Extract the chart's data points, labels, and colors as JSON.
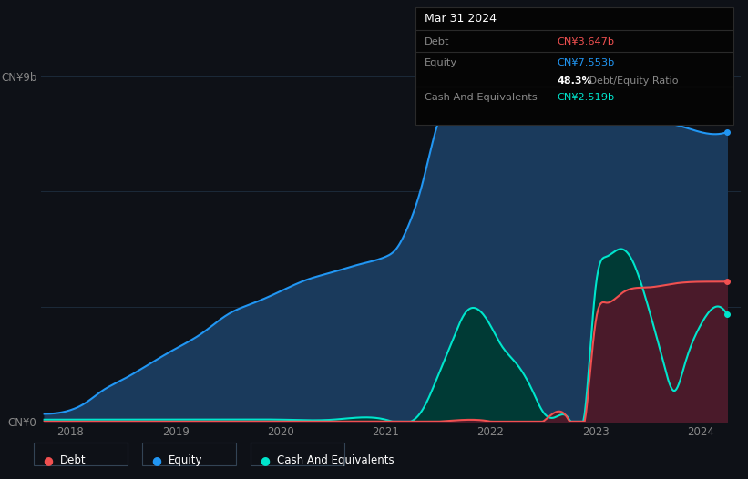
{
  "background_color": "#0e1117",
  "plot_bg_color": "#0e1117",
  "grid_color": "#1c2a3a",
  "equity_color": "#2196f3",
  "equity_fill": "#1a3a5c",
  "debt_color": "#f05050",
  "debt_fill": "#4a1a2a",
  "cash_color": "#00e5cc",
  "cash_fill": "#003a35",
  "tooltip_bg": "#050505",
  "tooltip_border": "#2a2a2a",
  "ytick_labels": [
    "CN¥0",
    "CN¥9b"
  ],
  "xtick_labels": [
    "2018",
    "2019",
    "2020",
    "2021",
    "2022",
    "2023",
    "2024"
  ],
  "equity_x": [
    2017.75,
    2018.0,
    2018.15,
    2018.3,
    2018.5,
    2018.75,
    2019.0,
    2019.25,
    2019.5,
    2019.75,
    2020.0,
    2020.25,
    2020.5,
    2020.75,
    2021.0,
    2021.1,
    2021.2,
    2021.35,
    2021.5,
    2021.65,
    2021.75,
    2022.0,
    2022.25,
    2022.5,
    2022.6,
    2022.75,
    2023.0,
    2023.25,
    2023.5,
    2023.75,
    2024.0,
    2024.25
  ],
  "equity_y": [
    200000000.0,
    300000000.0,
    500000000.0,
    800000000.0,
    1100000000.0,
    1500000000.0,
    1900000000.0,
    2300000000.0,
    2800000000.0,
    3100000000.0,
    3400000000.0,
    3700000000.0,
    3900000000.0,
    4100000000.0,
    4300000000.0,
    4500000000.0,
    5000000000.0,
    6200000000.0,
    7800000000.0,
    8600000000.0,
    8900000000.0,
    9000000000.0,
    8850000000.0,
    8550000000.0,
    8450000000.0,
    8300000000.0,
    8100000000.0,
    8000000000.0,
    7850000000.0,
    7750000000.0,
    7553000000.0,
    7550000000.0
  ],
  "debt_x": [
    2017.75,
    2018.0,
    2018.5,
    2019.0,
    2019.5,
    2020.0,
    2020.5,
    2021.0,
    2021.5,
    2022.0,
    2022.5,
    2022.75,
    2022.9,
    2023.0,
    2023.1,
    2023.25,
    2023.5,
    2023.75,
    2024.0,
    2024.25
  ],
  "debt_y": [
    0.0,
    0.0,
    0.0,
    0.0,
    0.0,
    0.0,
    0.0,
    0.0,
    0.0,
    0.0,
    0.0,
    0.0,
    50000000.0,
    2600000000.0,
    3100000000.0,
    3350000000.0,
    3500000000.0,
    3600000000.0,
    3647000000.0,
    3650000000.0
  ],
  "cash_x": [
    2017.75,
    2018.0,
    2018.5,
    2019.0,
    2019.5,
    2020.0,
    2020.5,
    2021.0,
    2021.35,
    2021.5,
    2021.65,
    2021.75,
    2022.0,
    2022.1,
    2022.25,
    2022.4,
    2022.5,
    2022.6,
    2022.75,
    2022.9,
    2023.0,
    2023.1,
    2023.25,
    2023.35,
    2023.5,
    2023.65,
    2023.75,
    2023.85,
    2024.0,
    2024.15,
    2024.25
  ],
  "cash_y": [
    50000000.0,
    50000000.0,
    50000000.0,
    50000000.0,
    50000000.0,
    50000000.0,
    50000000.0,
    50000000.0,
    300000000.0,
    1200000000.0,
    2200000000.0,
    2800000000.0,
    2500000000.0,
    2000000000.0,
    1500000000.0,
    800000000.0,
    250000000.0,
    100000000.0,
    50000000.0,
    300000000.0,
    3500000000.0,
    4300000000.0,
    4500000000.0,
    4200000000.0,
    3000000000.0,
    1500000000.0,
    800000000.0,
    1500000000.0,
    2519000000.0,
    3000000000.0,
    2800000000.0
  ],
  "tooltip_title": "Mar 31 2024",
  "tooltip_debt_label": "Debt",
  "tooltip_debt_value": "CN¥3.647b",
  "tooltip_equity_label": "Equity",
  "tooltip_equity_value": "CN¥7.553b",
  "tooltip_ratio_bold": "48.3%",
  "tooltip_ratio_normal": " Debt/Equity Ratio",
  "tooltip_cash_label": "Cash And Equivalents",
  "tooltip_cash_value": "CN¥2.519b",
  "legend_items": [
    "Debt",
    "Equity",
    "Cash And Equivalents"
  ],
  "legend_colors": [
    "#f05050",
    "#2196f3",
    "#00e5cc"
  ]
}
